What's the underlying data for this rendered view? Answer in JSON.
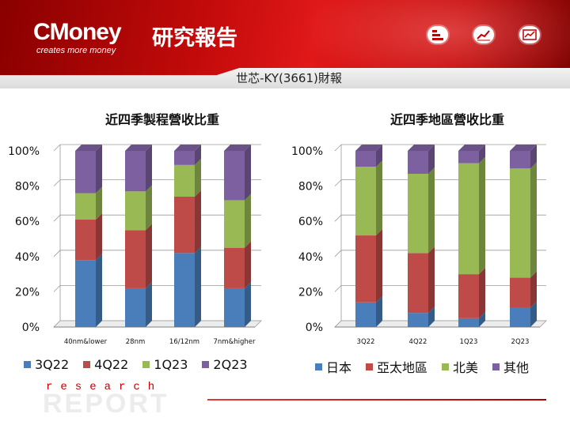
{
  "header": {
    "logo": "CMoney",
    "logo_cn": "研究報告",
    "tagline": "creates more money",
    "subtitle": "世芯-KY(3661)財報",
    "icons": [
      "list-icon",
      "line-chart-icon",
      "chart-card-icon"
    ]
  },
  "footer": {
    "research": "research",
    "report": "REPORT"
  },
  "colors": {
    "blue": "#4a7ebb",
    "red": "#be4b48",
    "green": "#98b954",
    "purple": "#7d60a0"
  },
  "chart_data": [
    {
      "type": "bar",
      "stacked": "percent",
      "title": "近四季製程營收比重",
      "categories": [
        "40nm&lower",
        "28nm",
        "16/12nm",
        "7nm&higher"
      ],
      "series": [
        {
          "name": "3Q22",
          "color": "#4a7ebb",
          "values": [
            38,
            22,
            42,
            22
          ]
        },
        {
          "name": "4Q22",
          "color": "#be4b48",
          "values": [
            23,
            33,
            32,
            23
          ]
        },
        {
          "name": "1Q23",
          "color": "#98b954",
          "values": [
            15,
            22,
            18,
            27
          ]
        },
        {
          "name": "2Q23",
          "color": "#7d60a0",
          "values": [
            24,
            23,
            8,
            28
          ]
        }
      ],
      "ylim": [
        0,
        100
      ],
      "yticks": [
        "0%",
        "20%",
        "40%",
        "60%",
        "80%",
        "100%"
      ],
      "legend": "bottom"
    },
    {
      "type": "bar",
      "stacked": "percent",
      "title": "近四季地區營收比重",
      "categories": [
        "3Q22",
        "4Q22",
        "1Q23",
        "2Q23"
      ],
      "series": [
        {
          "name": "日本",
          "color": "#4a7ebb",
          "values": [
            14,
            8,
            5,
            11
          ]
        },
        {
          "name": "亞太地區",
          "color": "#be4b48",
          "values": [
            38,
            34,
            25,
            17
          ]
        },
        {
          "name": "北美",
          "color": "#98b954",
          "values": [
            39,
            45,
            63,
            62
          ]
        },
        {
          "name": "其他",
          "color": "#7d60a0",
          "values": [
            9,
            13,
            7,
            10
          ]
        }
      ],
      "ylim": [
        0,
        100
      ],
      "yticks": [
        "0%",
        "20%",
        "40%",
        "60%",
        "80%",
        "100%"
      ],
      "legend": "bottom"
    }
  ]
}
